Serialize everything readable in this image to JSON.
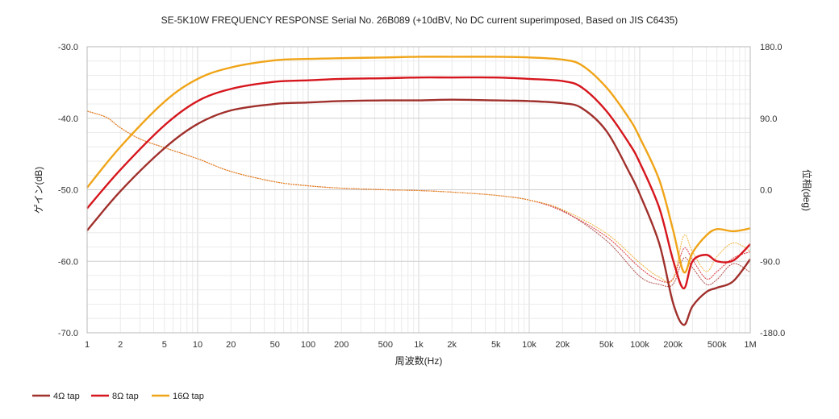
{
  "chart_data": {
    "type": "line",
    "title": "SE-5K10W FREQUENCY RESPONSE Serial No. 26B089 (+10dBV,  No DC current superimposed,  Based on JIS C6435)",
    "xlabel": "周波数(Hz)",
    "ylabel": "ゲイン(dB)",
    "y2label": "位相(deg)",
    "x_scale": "log",
    "xlim": [
      1,
      1000000
    ],
    "ylim": [
      -70,
      -30
    ],
    "y2lim": [
      -180,
      180
    ],
    "grid": true,
    "legend_position": "bottom-left",
    "x_ticks": [
      "1",
      "2",
      "5",
      "10",
      "20",
      "50",
      "100",
      "200",
      "500",
      "1k",
      "2k",
      "5k",
      "10k",
      "20k",
      "50k",
      "100k",
      "200k",
      "500k",
      "1M"
    ],
    "x_tick_values": [
      1,
      2,
      5,
      10,
      20,
      50,
      100,
      200,
      500,
      1000,
      2000,
      5000,
      10000,
      20000,
      50000,
      100000,
      200000,
      500000,
      1000000
    ],
    "y_ticks": [
      "-30.0",
      "-40.0",
      "-50.0",
      "-60.0",
      "-70.0"
    ],
    "y2_ticks": [
      "180.0",
      "90.0",
      "0.0",
      "-90.0",
      "-180.0"
    ],
    "colors": {
      "4ohm": "#a0302c",
      "8ohm": "#d6161d",
      "16ohm": "#f0a418"
    },
    "series": [
      {
        "name": "4Ω tap",
        "color": "#a0302c",
        "x": [
          1,
          2,
          5,
          10,
          20,
          50,
          100,
          200,
          500,
          1000,
          2000,
          5000,
          10000,
          20000,
          30000,
          50000,
          80000,
          100000,
          150000,
          200000,
          250000,
          300000,
          400000,
          500000,
          700000,
          1000000
        ],
        "gain": [
          -55.7,
          -50.2,
          -44.2,
          -40.8,
          -38.9,
          -38.0,
          -37.8,
          -37.6,
          -37.5,
          -37.5,
          -37.4,
          -37.5,
          -37.6,
          -37.9,
          -38.6,
          -41.8,
          -47.5,
          -50.6,
          -57.5,
          -65.8,
          -68.9,
          -66.3,
          -64.3,
          -63.7,
          -62.8,
          -59.7
        ]
      },
      {
        "name": "8Ω tap",
        "color": "#d6161d",
        "x": [
          1,
          2,
          5,
          10,
          20,
          50,
          100,
          200,
          500,
          1000,
          2000,
          5000,
          10000,
          20000,
          30000,
          50000,
          80000,
          100000,
          150000,
          200000,
          250000,
          300000,
          400000,
          500000,
          700000,
          1000000
        ],
        "gain": [
          -52.6,
          -47.2,
          -41.0,
          -37.6,
          -35.9,
          -34.9,
          -34.7,
          -34.5,
          -34.4,
          -34.3,
          -34.3,
          -34.3,
          -34.5,
          -34.8,
          -35.7,
          -39.0,
          -43.5,
          -46.2,
          -52.5,
          -59.8,
          -63.8,
          -60.0,
          -59.1,
          -60.0,
          -59.9,
          -57.6
        ]
      },
      {
        "name": "16Ω tap",
        "color": "#f0a418",
        "x": [
          1,
          2,
          5,
          10,
          20,
          50,
          100,
          200,
          500,
          1000,
          2000,
          5000,
          10000,
          20000,
          30000,
          50000,
          80000,
          100000,
          150000,
          200000,
          250000,
          300000,
          400000,
          500000,
          700000,
          1000000
        ],
        "gain": [
          -49.7,
          -44.0,
          -37.7,
          -34.5,
          -32.9,
          -31.9,
          -31.7,
          -31.6,
          -31.5,
          -31.4,
          -31.4,
          -31.4,
          -31.5,
          -31.8,
          -32.6,
          -35.7,
          -40.0,
          -42.7,
          -48.6,
          -55.6,
          -61.5,
          -58.8,
          -56.4,
          -55.5,
          -55.8,
          -55.4
        ]
      }
    ],
    "phase_series": [
      {
        "name": "4Ω tap",
        "color": "#a0302c",
        "x": [
          1,
          1.5,
          2,
          3,
          5,
          10,
          20,
          50,
          100,
          200,
          500,
          1000,
          2000,
          5000,
          10000,
          20000,
          50000,
          100000,
          150000,
          200000,
          250000,
          300000,
          400000,
          500000,
          700000,
          1000000
        ],
        "phase": [
          99,
          91,
          78,
          64,
          53,
          39,
          23,
          10,
          5,
          2,
          0,
          -1,
          -3,
          -7,
          -13,
          -26,
          -64,
          -109,
          -119,
          -119,
          -86,
          -98,
          -119,
          -113,
          -93,
          -104
        ]
      },
      {
        "name": "8Ω tap",
        "color": "#d6161d",
        "x": [
          1,
          1.5,
          2,
          3,
          5,
          10,
          20,
          50,
          100,
          200,
          500,
          1000,
          2000,
          5000,
          10000,
          20000,
          50000,
          100000,
          150000,
          200000,
          250000,
          300000,
          400000,
          500000,
          700000,
          1000000
        ],
        "phase": [
          99,
          91,
          78,
          64,
          53,
          39,
          23,
          10,
          5,
          2,
          0,
          -1,
          -3,
          -7,
          -13,
          -27,
          -59,
          -98,
          -114,
          -112,
          -74,
          -88,
          -112,
          -103,
          -86,
          -78
        ]
      },
      {
        "name": "16Ω tap",
        "color": "#f0a418",
        "x": [
          1,
          1.5,
          2,
          3,
          5,
          10,
          20,
          50,
          100,
          200,
          500,
          1000,
          2000,
          5000,
          10000,
          20000,
          50000,
          100000,
          150000,
          200000,
          250000,
          300000,
          400000,
          500000,
          700000,
          1000000
        ],
        "phase": [
          99,
          91,
          78,
          64,
          53,
          39,
          23,
          10,
          5,
          2,
          0,
          -1,
          -3,
          -7,
          -13,
          -25,
          -55,
          -92,
          -110,
          -113,
          -58,
          -78,
          -103,
          -84,
          -67,
          -77
        ]
      }
    ]
  }
}
